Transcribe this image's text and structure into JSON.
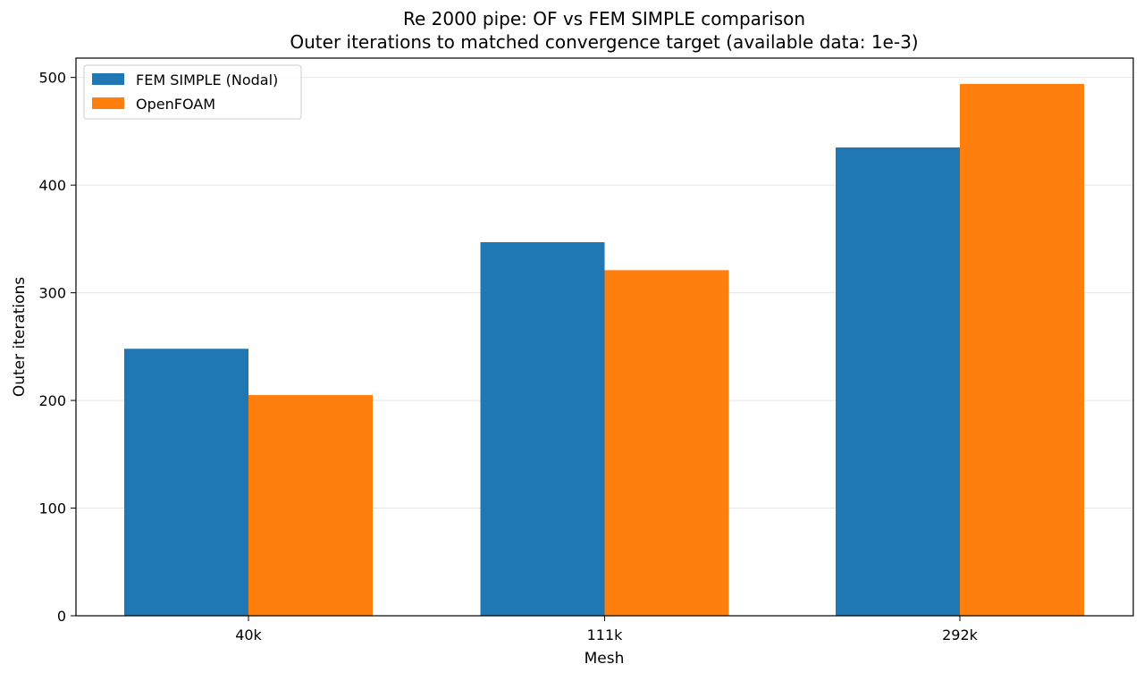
{
  "chart_data": {
    "type": "bar",
    "title": "Re 2000 pipe: OF vs FEM SIMPLE comparison",
    "subtitle": "Outer iterations to matched convergence target (available data: 1e-3)",
    "xlabel": "Mesh",
    "ylabel": "Outer iterations",
    "categories": [
      "40k",
      "111k",
      "292k"
    ],
    "series": [
      {
        "name": "FEM SIMPLE (Nodal)",
        "color": "#1f77b4",
        "values": [
          248,
          347,
          435
        ]
      },
      {
        "name": "OpenFOAM",
        "color": "#ff7f0e",
        "values": [
          205,
          321,
          494
        ]
      }
    ],
    "ylim": [
      0,
      518
    ],
    "yticks": [
      0,
      100,
      200,
      300,
      400,
      500
    ],
    "grid": "y",
    "legend_position": "top-left"
  }
}
